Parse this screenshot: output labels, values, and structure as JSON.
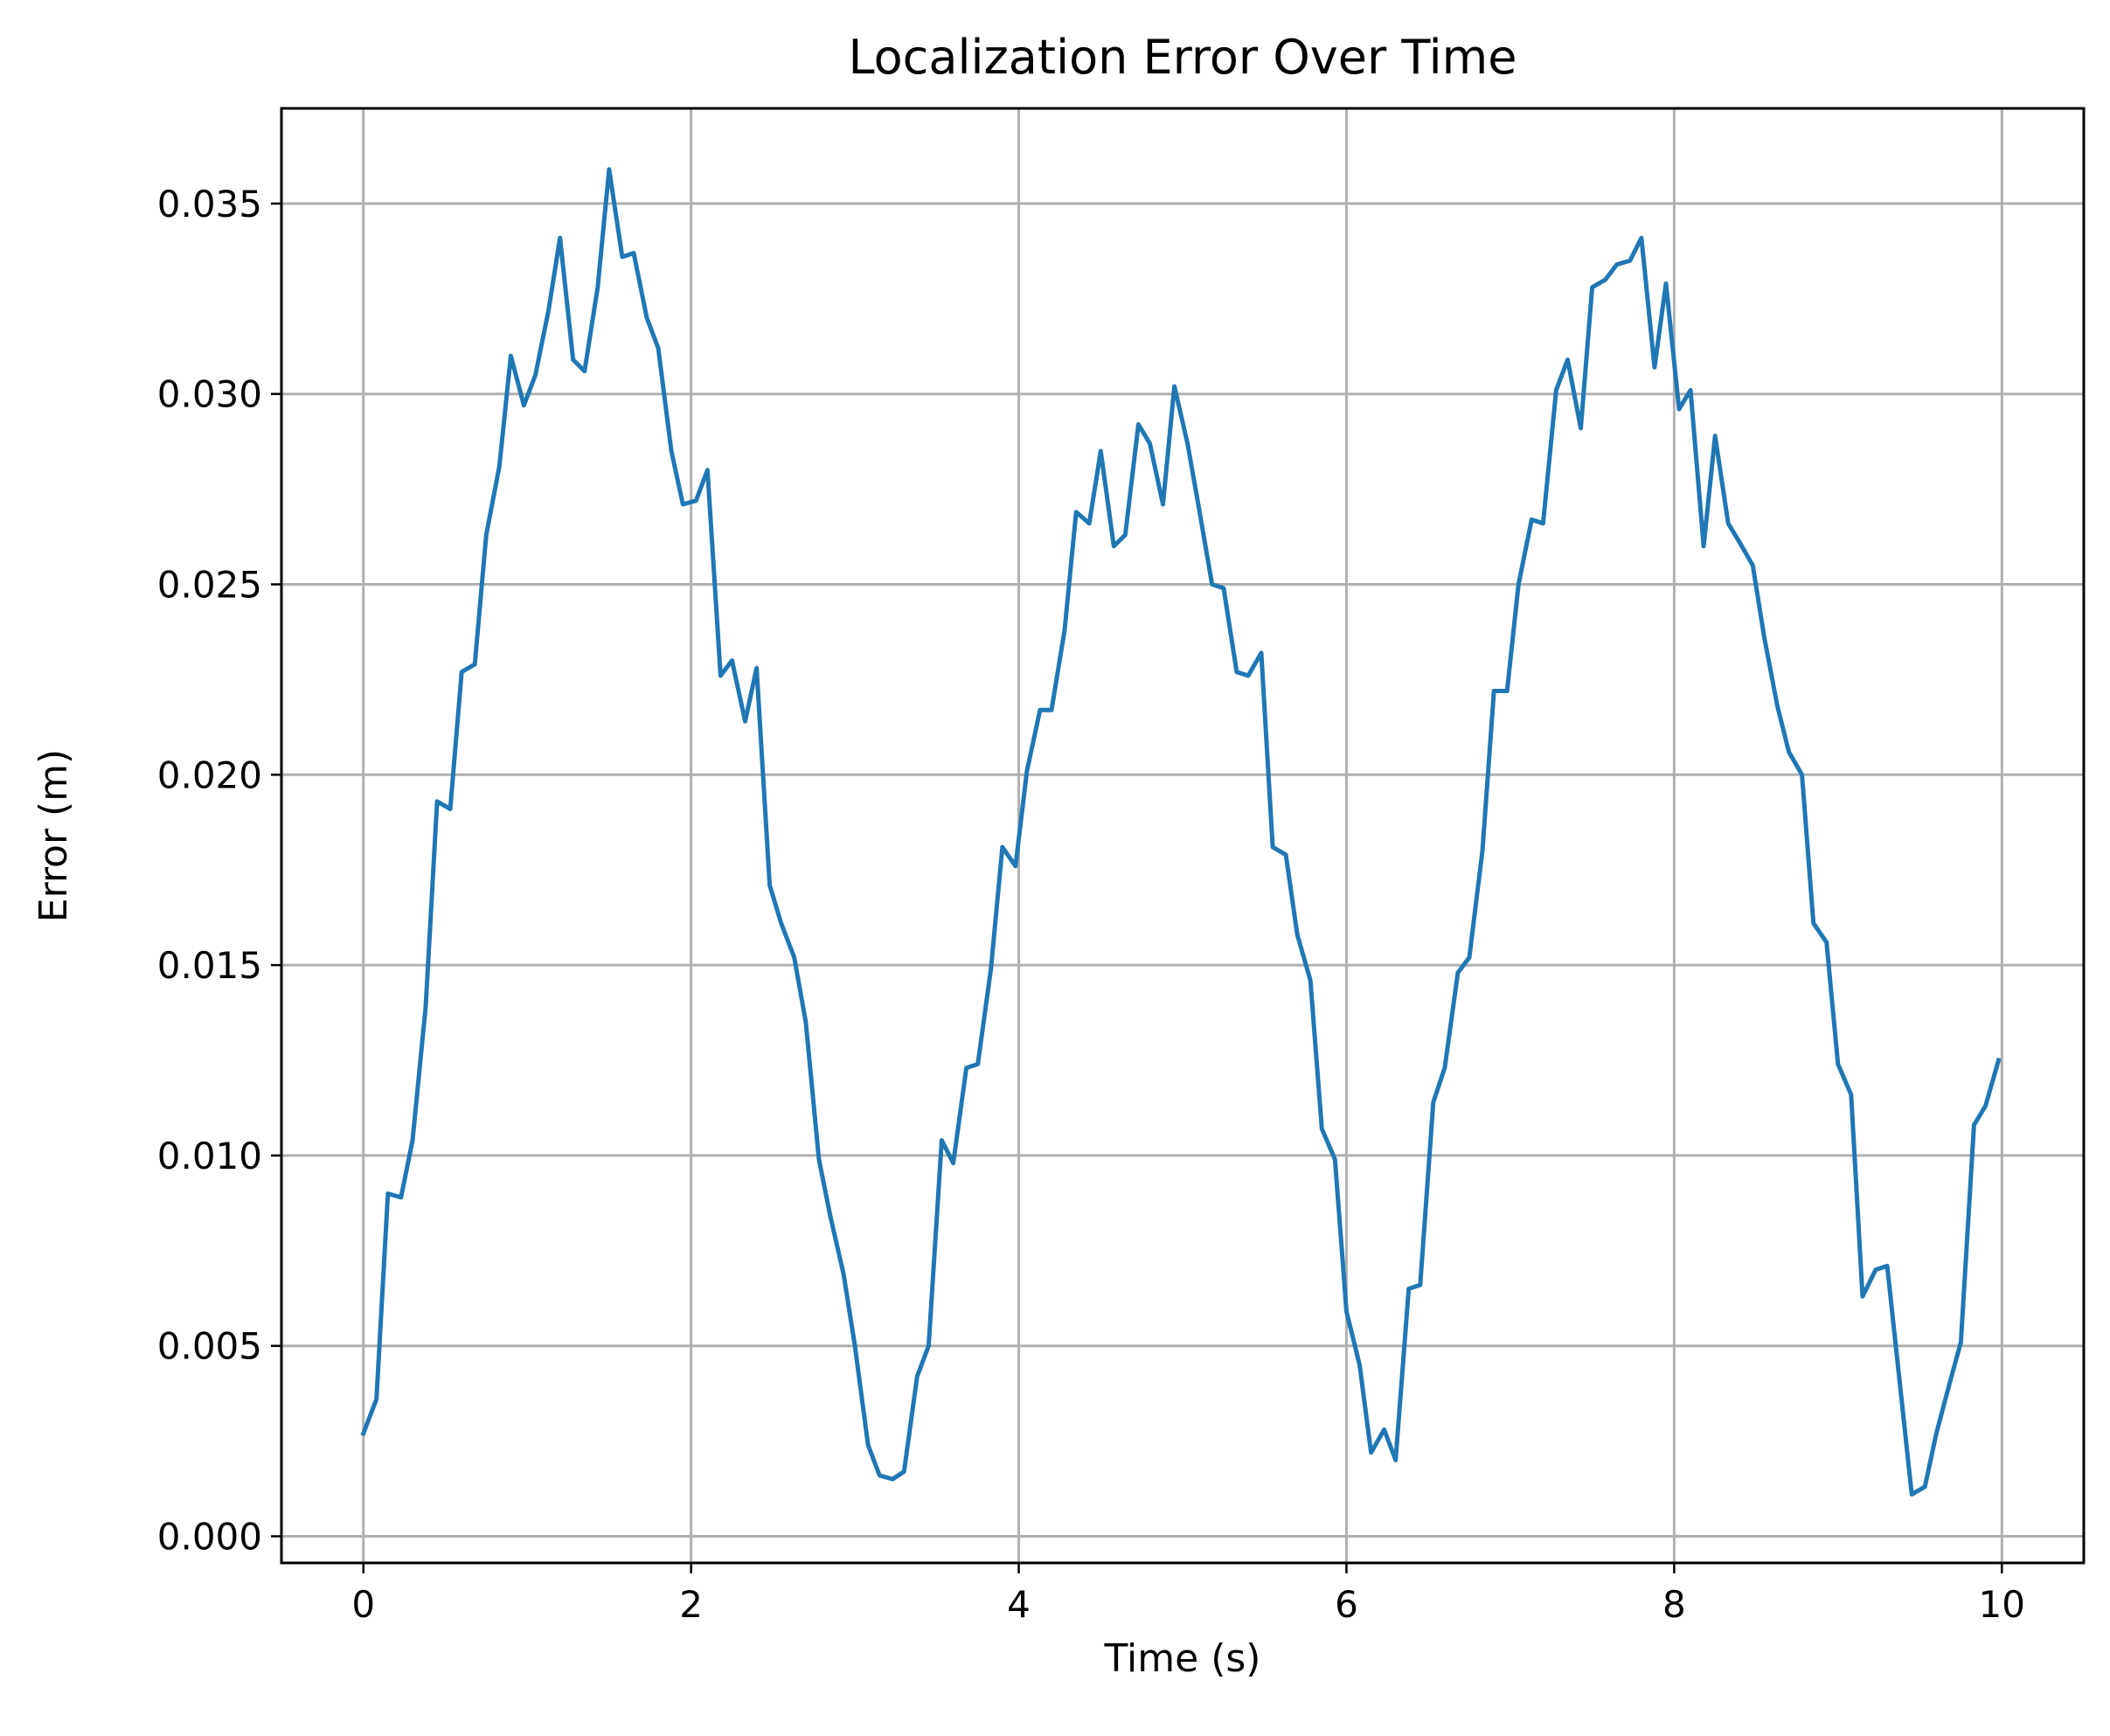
{
  "chart_data": {
    "type": "line",
    "title": "Localization Error Over Time",
    "xlabel": "Time (s)",
    "ylabel": "Error (m)",
    "xlim": [
      -0.5,
      10.5
    ],
    "ylim": [
      -0.0007,
      0.0375
    ],
    "xticks": [
      0,
      2,
      4,
      6,
      8,
      10
    ],
    "xtick_labels": [
      "0",
      "2",
      "4",
      "6",
      "8",
      "10"
    ],
    "yticks": [
      0.0,
      0.005,
      0.01,
      0.015,
      0.02,
      0.025,
      0.03,
      0.035
    ],
    "ytick_labels": [
      "0.000",
      "0.005",
      "0.010",
      "0.015",
      "0.020",
      "0.025",
      "0.030",
      "0.035"
    ],
    "grid": true,
    "legend": "none",
    "color": "#1f77b4",
    "series": [
      {
        "x": [
          0.0,
          0.08,
          0.15,
          0.23,
          0.3,
          0.38,
          0.45,
          0.53,
          0.6,
          0.68,
          0.75,
          0.83,
          0.9,
          0.98,
          1.05,
          1.13,
          1.2,
          1.28,
          1.35,
          1.43,
          1.5,
          1.58,
          1.65,
          1.73,
          1.8,
          1.88,
          1.95,
          2.03,
          2.1,
          2.18,
          2.25,
          2.33,
          2.4,
          2.48,
          2.55,
          2.63,
          2.7,
          2.78,
          2.85,
          2.93,
          3.0,
          3.08,
          3.15,
          3.23,
          3.3,
          3.38,
          3.45,
          3.53,
          3.6,
          3.68,
          3.75,
          3.83,
          3.9,
          3.98,
          4.05,
          4.13,
          4.2,
          4.28,
          4.35,
          4.43,
          4.5,
          4.58,
          4.65,
          4.73,
          4.8,
          4.88,
          4.95,
          5.03,
          5.1,
          5.18,
          5.25,
          5.33,
          5.4,
          5.48,
          5.55,
          5.63,
          5.7,
          5.78,
          5.85,
          5.93,
          6.0,
          6.08,
          6.15,
          6.23,
          6.3,
          6.38,
          6.45,
          6.53,
          6.6,
          6.68,
          6.75,
          6.83,
          6.9,
          6.98,
          7.05,
          7.13,
          7.2,
          7.28,
          7.35,
          7.43,
          7.5,
          7.58,
          7.65,
          7.73,
          7.8,
          7.88,
          7.95,
          8.03,
          8.1,
          8.18,
          8.25,
          8.33,
          8.4,
          8.48,
          8.55,
          8.63,
          8.7,
          8.78,
          8.85,
          8.93,
          9.0,
          9.08,
          9.15,
          9.23,
          9.3,
          9.38,
          9.45,
          9.53,
          9.6,
          9.68,
          9.75,
          9.83,
          9.9,
          9.98
        ],
        "values": [
          0.0027,
          0.0036,
          0.009,
          0.0089,
          0.0104,
          0.0139,
          0.0193,
          0.0191,
          0.0227,
          0.0229,
          0.0263,
          0.0281,
          0.031,
          0.0297,
          0.0305,
          0.0322,
          0.0341,
          0.0309,
          0.0306,
          0.0328,
          0.0359,
          0.0336,
          0.0337,
          0.032,
          0.0312,
          0.0285,
          0.0271,
          0.0272,
          0.028,
          0.0226,
          0.023,
          0.0214,
          0.0228,
          0.0171,
          0.0161,
          0.0152,
          0.0135,
          0.0099,
          0.0084,
          0.0069,
          0.005,
          0.0024,
          0.0016,
          0.0015,
          0.0017,
          0.0042,
          0.005,
          0.0104,
          0.0098,
          0.0123,
          0.0124,
          0.0149,
          0.0181,
          0.0176,
          0.0201,
          0.0217,
          0.0217,
          0.0238,
          0.0269,
          0.0266,
          0.0285,
          0.026,
          0.0263,
          0.0292,
          0.0287,
          0.0271,
          0.0302,
          0.0287,
          0.027,
          0.025,
          0.0249,
          0.0227,
          0.0226,
          0.0232,
          0.0181,
          0.0179,
          0.0158,
          0.0146,
          0.0107,
          0.0099,
          0.0059,
          0.0045,
          0.0022,
          0.0028,
          0.002,
          0.0065,
          0.0066,
          0.0114,
          0.0123,
          0.0148,
          0.0152,
          0.018,
          0.0222,
          0.0222,
          0.025,
          0.0267,
          0.0266,
          0.0301,
          0.0309,
          0.0291,
          0.0328,
          0.033,
          0.0334,
          0.0335,
          0.0341,
          0.0307,
          0.0329,
          0.0296,
          0.0301,
          0.026,
          0.0289,
          0.0266,
          0.0261,
          0.0255,
          0.0236,
          0.0218,
          0.0206,
          0.02,
          0.0161,
          0.0156,
          0.0124,
          0.0116,
          0.0063,
          0.007,
          0.0071,
          0.0039,
          0.0011,
          0.0013,
          0.0027,
          0.004,
          0.0051,
          0.0108,
          0.0113,
          0.0125
        ]
      }
    ]
  }
}
